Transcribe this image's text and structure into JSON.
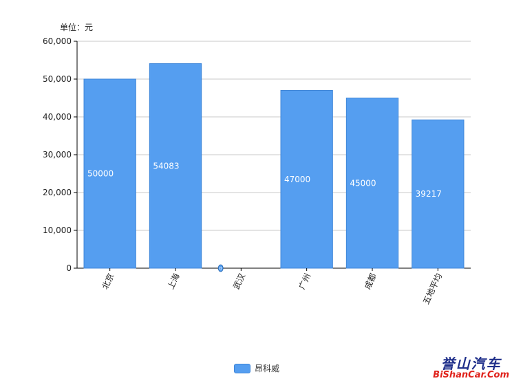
{
  "unit_label": "单位：元",
  "legend_label": "昂科威",
  "colors": {
    "bar": "#559ef0",
    "bar_border": "#3f86d8",
    "grid": "#c8c8c8",
    "axis": "#000000"
  },
  "watermark": {
    "cn": "誉山汽车",
    "en": "BiShanCar.Com"
  },
  "chart_data": {
    "type": "bar",
    "title": "",
    "xlabel": "",
    "ylabel": "",
    "categories": [
      "北京",
      "上海",
      "武汉",
      "广州",
      "成都",
      "五地平均"
    ],
    "series": [
      {
        "name": "昂科威",
        "values": [
          50000,
          54083,
          0,
          47000,
          45000,
          39217
        ]
      }
    ],
    "data_labels": [
      "50000",
      "54083",
      "0",
      "47000",
      "45000",
      "39217"
    ],
    "ylim": [
      0,
      60000
    ],
    "yticks": [
      0,
      10000,
      20000,
      30000,
      40000,
      50000,
      60000
    ],
    "ytick_labels": [
      "0",
      "10,000",
      "20,000",
      "30,000",
      "40,000",
      "50,000",
      "60,000"
    ],
    "grid": true,
    "legend_position": "bottom-center"
  }
}
